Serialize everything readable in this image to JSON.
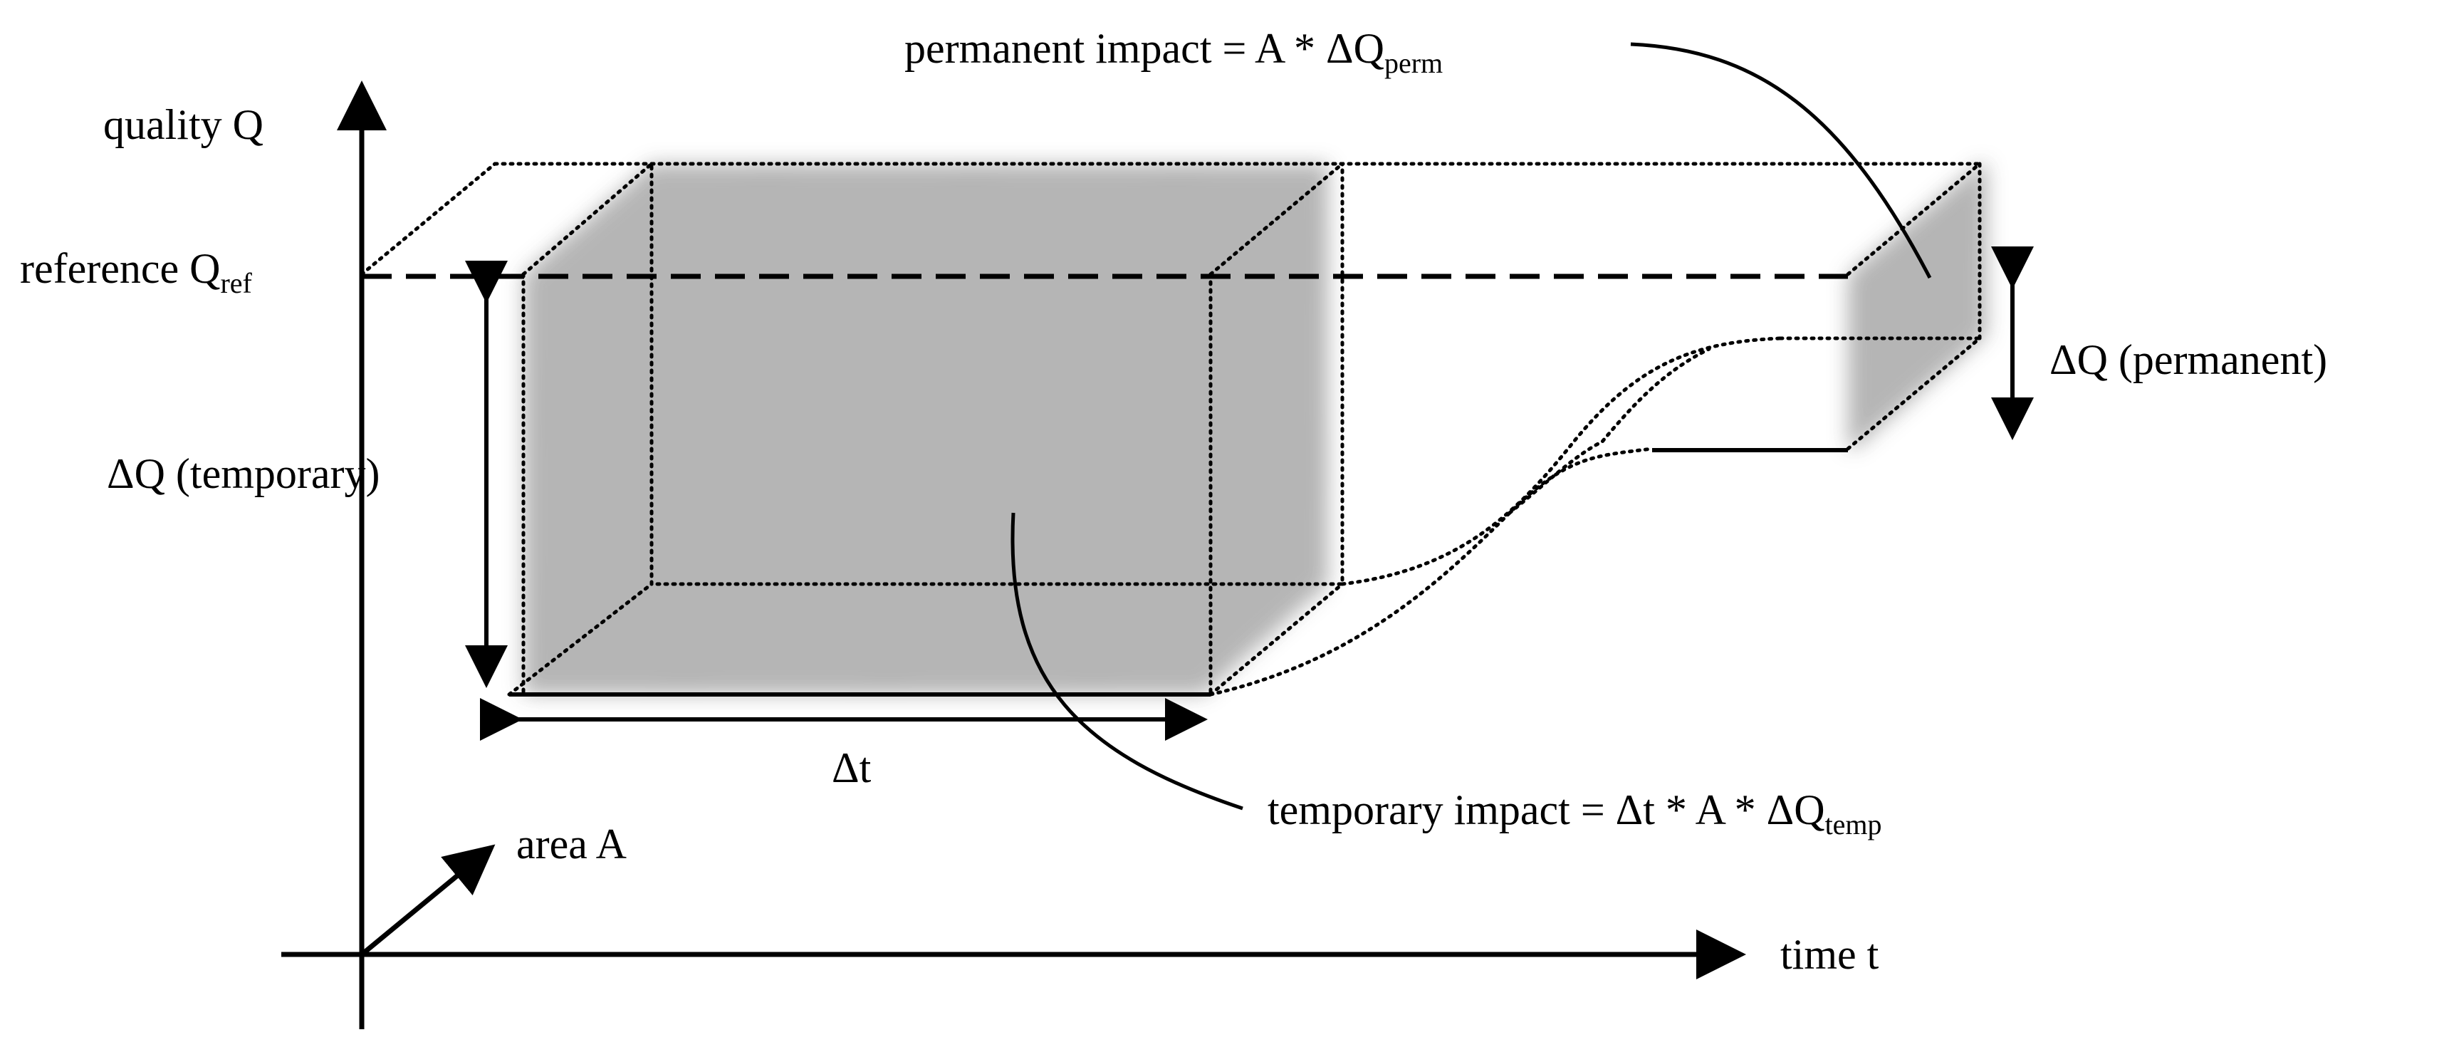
{
  "colors": {
    "ink": "#000000",
    "shade": "#8a8a8a",
    "background": "#ffffff"
  },
  "labels": {
    "y_axis": "quality Q",
    "reference": {
      "text": "reference Q",
      "sub": "ref"
    },
    "delta_q_temporary": "ΔQ (temporary)",
    "delta_t": "Δt",
    "area_axis": "area A",
    "x_axis": "time t",
    "delta_q_permanent": "ΔQ (permanent)",
    "permanent_impact": {
      "text": "permanent impact = A * ΔQ",
      "sub": "perm"
    },
    "temporary_impact": {
      "text": "temporary impact = Δt * A * ΔQ",
      "sub": "temp"
    }
  }
}
